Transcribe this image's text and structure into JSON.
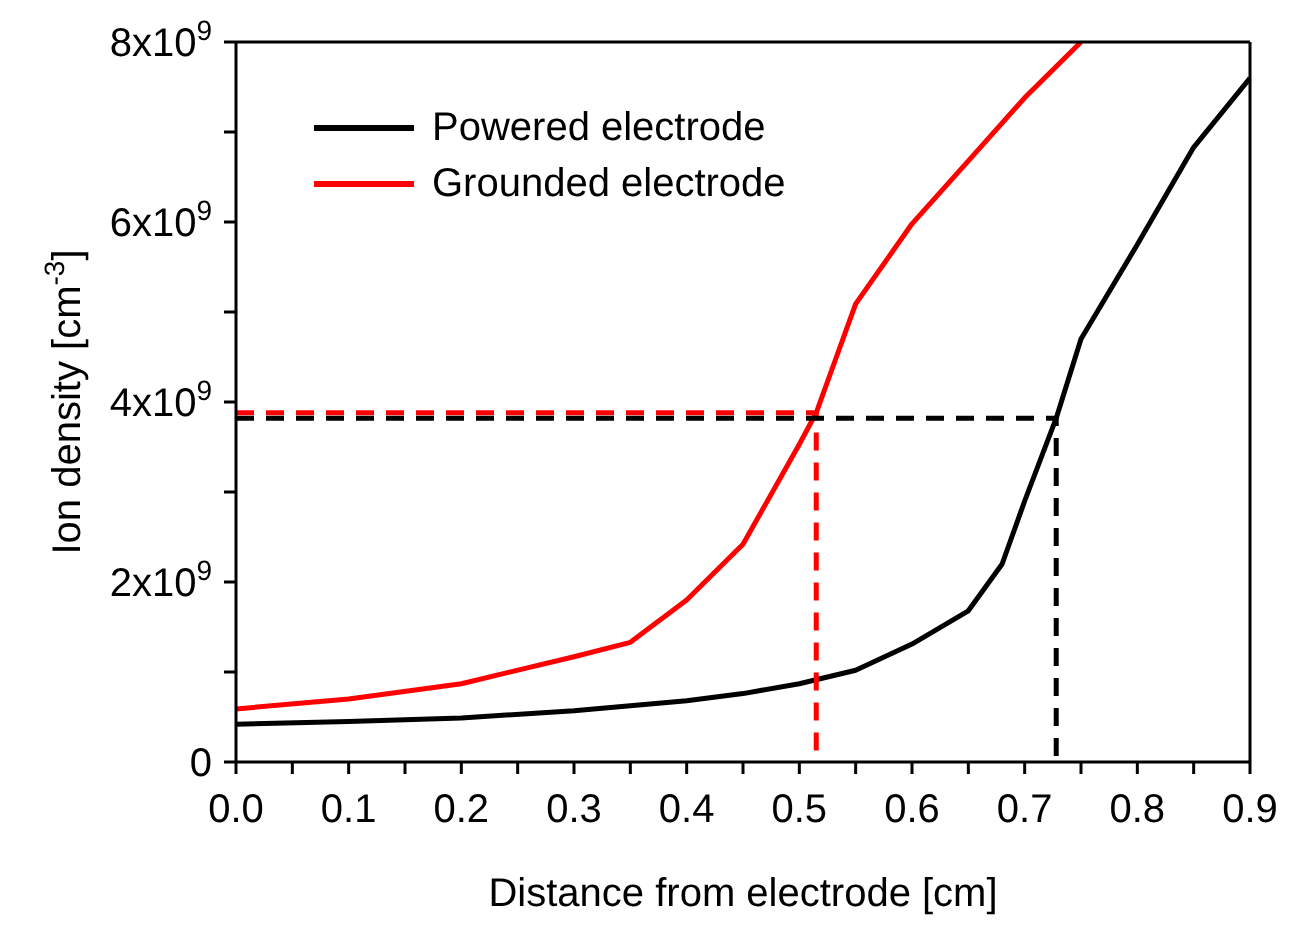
{
  "chart_data": {
    "type": "line",
    "xlabel": "Distance from electrode [cm]",
    "ylabel": "Ion density [cm$^{-3}$]",
    "xlim": [
      0,
      0.9
    ],
    "ylim": [
      0,
      8000000000
    ],
    "xticks": [
      {
        "value": 0,
        "label": "0.0"
      },
      {
        "value": 0.05,
        "label": null
      },
      0.1,
      {
        "value": 0.15,
        "label": null
      },
      0.2,
      {
        "value": 0.25,
        "label": null
      },
      0.3,
      {
        "value": 0.35,
        "label": null
      },
      0.4,
      {
        "value": 0.45,
        "label": null
      },
      0.5,
      {
        "value": 0.55,
        "label": null
      },
      0.6,
      {
        "value": 0.65,
        "label": null
      },
      0.7,
      {
        "value": 0.75,
        "label": null
      },
      0.8,
      {
        "value": 0.85,
        "label": null
      },
      0.9
    ],
    "yticks": [
      0,
      {
        "value": 1000000000,
        "label": null
      },
      {
        "value": 2000000000,
        "label": "2x10$^{9}$"
      },
      {
        "value": 3000000000,
        "label": null
      },
      {
        "value": 4000000000,
        "label": "4x10$^{9}$"
      },
      {
        "value": 5000000000,
        "label": null
      },
      {
        "value": 6000000000,
        "label": "6x10$^{9}$"
      },
      {
        "value": 7000000000,
        "label": null
      },
      {
        "value": 8000000000,
        "label": "8x10$^{9}$"
      }
    ],
    "legend": "top left",
    "marker": "none",
    "series": [
      {
        "name": "Powered electrode",
        "color": "#000000",
        "line_style": "solid",
        "x": [
          0,
          0.1,
          0.2,
          0.3,
          0.4,
          0.45,
          0.5,
          0.55,
          0.6,
          0.65,
          0.68,
          0.7,
          0.728,
          0.75,
          0.8,
          0.85,
          0.9
        ],
        "values": [
          420000000,
          450000000,
          490000000,
          570000000,
          680000000,
          760000000,
          870000000,
          1020000000,
          1310000000,
          1680000000,
          2200000000,
          2900000000,
          3820000000,
          4700000000,
          5750000000,
          6830000000,
          7600000000
        ]
      },
      {
        "name": "Grounded electrode",
        "color": "#ff0000",
        "line_style": "solid",
        "x": [
          0,
          0.1,
          0.2,
          0.3,
          0.35,
          0.4,
          0.45,
          0.5,
          0.515,
          0.53,
          0.55,
          0.6,
          0.65,
          0.7,
          0.75
        ],
        "values": [
          590000000,
          700000000,
          870000000,
          1170000000,
          1330000000,
          1800000000,
          2420000000,
          3530000000,
          3880000000,
          4400000000,
          5090000000,
          5980000000,
          6680000000,
          7380000000,
          8000000000
        ]
      },
      {
        "color": "#ff0000",
        "line_style": "dashed",
        "x": [
          0,
          0.515,
          0.515
        ],
        "values": [
          3880000000,
          3880000000,
          0
        ]
      },
      {
        "color": "#000000",
        "line_style": "dashed",
        "x": [
          0,
          0.728,
          0.728
        ],
        "values": [
          3820000000,
          3820000000,
          0
        ]
      }
    ]
  }
}
